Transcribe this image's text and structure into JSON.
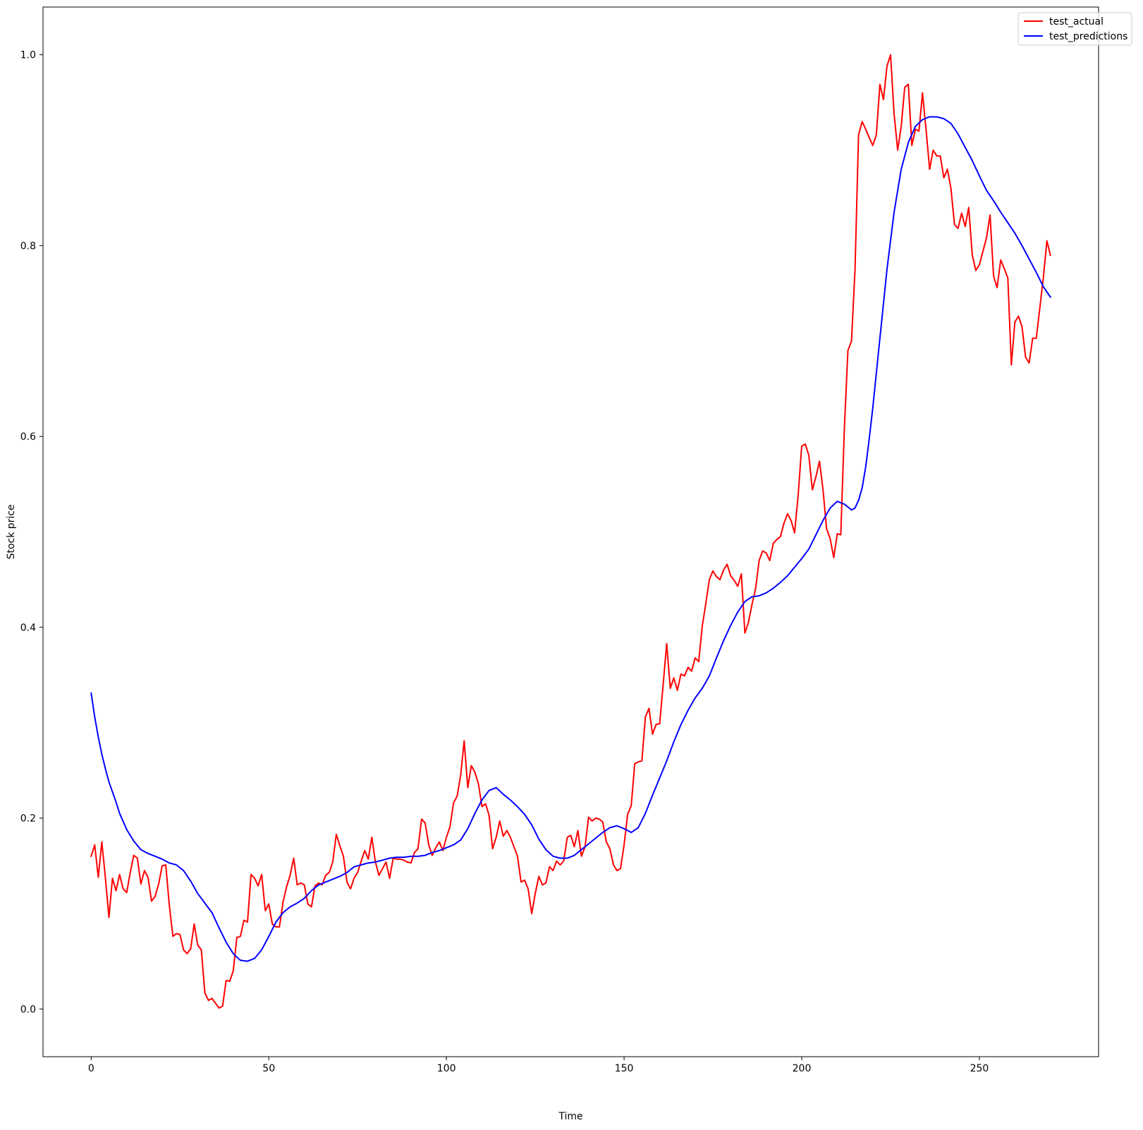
{
  "chart_data": {
    "type": "line",
    "title": "",
    "xlabel": "Time",
    "ylabel": "Stock price",
    "xlim": [
      -13.55,
      283.55
    ],
    "ylim": [
      -0.05,
      1.05
    ],
    "xticks": [
      0,
      50,
      100,
      150,
      200,
      250
    ],
    "xtick_labels": [
      "0",
      "50",
      "100",
      "150",
      "200",
      "250"
    ],
    "yticks": [
      0.0,
      0.2,
      0.4,
      0.6,
      0.8,
      1.0
    ],
    "ytick_labels": [
      "0.0",
      "0.2",
      "0.4",
      "0.6",
      "0.8",
      "1.0"
    ],
    "grid": false,
    "legend_position": "top-right",
    "series": [
      {
        "name": "test_actual",
        "color": "#ff0000",
        "x": [
          0,
          1,
          2,
          3,
          4,
          5,
          6,
          7,
          8,
          9,
          10,
          11,
          12,
          13,
          14,
          15,
          16,
          17,
          18,
          19,
          20,
          21,
          22,
          23,
          24,
          25,
          26,
          27,
          28,
          29,
          30,
          31,
          32,
          33,
          34,
          35,
          36,
          37,
          38,
          39,
          40,
          41,
          42,
          43,
          44,
          45,
          46,
          47,
          48,
          49,
          50,
          51,
          52,
          53,
          54,
          55,
          56,
          57,
          58,
          59,
          60,
          61,
          62,
          63,
          64,
          65,
          66,
          67,
          68,
          69,
          70,
          71,
          72,
          73,
          74,
          75,
          76,
          77,
          78,
          79,
          80,
          81,
          82,
          83,
          84,
          85,
          86,
          87,
          88,
          89,
          90,
          91,
          92,
          93,
          94,
          95,
          96,
          97,
          98,
          99,
          100,
          101,
          102,
          103,
          104,
          105,
          106,
          107,
          108,
          109,
          110,
          111,
          112,
          113,
          114,
          115,
          116,
          117,
          118,
          119,
          120,
          121,
          122,
          123,
          124,
          125,
          126,
          127,
          128,
          129,
          130,
          131,
          132,
          133,
          134,
          135,
          136,
          137,
          138,
          139,
          140,
          141,
          142,
          143,
          144,
          145,
          146,
          147,
          148,
          149,
          150,
          151,
          152,
          153,
          154,
          155,
          156,
          157,
          158,
          159,
          160,
          161,
          162,
          163,
          164,
          165,
          166,
          167,
          168,
          169,
          170,
          171,
          172,
          173,
          174,
          175,
          176,
          177,
          178,
          179,
          180,
          181,
          182,
          183,
          184,
          185,
          186,
          187,
          188,
          189,
          190,
          191,
          192,
          193,
          194,
          195,
          196,
          197,
          198,
          199,
          200,
          201,
          202,
          203,
          204,
          205,
          206,
          207,
          208,
          209,
          210,
          211,
          212,
          213,
          214,
          215,
          216,
          217,
          218,
          219,
          220,
          221,
          222,
          223,
          224,
          225,
          226,
          227,
          228,
          229,
          230,
          231,
          232,
          233,
          234,
          235,
          236,
          237,
          238,
          239,
          240,
          241,
          242,
          243,
          244,
          245,
          246,
          247,
          248,
          249,
          250,
          251,
          252,
          253,
          254,
          255,
          256,
          257,
          258,
          259,
          260,
          261,
          262,
          263,
          264,
          265,
          266,
          267,
          268,
          269,
          270
        ],
        "y": [
          0.16,
          0.172,
          0.138,
          0.175,
          0.138,
          0.096,
          0.137,
          0.124,
          0.141,
          0.126,
          0.122,
          0.143,
          0.161,
          0.158,
          0.131,
          0.145,
          0.138,
          0.113,
          0.118,
          0.131,
          0.15,
          0.151,
          0.109,
          0.076,
          0.079,
          0.078,
          0.062,
          0.058,
          0.063,
          0.089,
          0.067,
          0.062,
          0.017,
          0.009,
          0.011,
          0.006,
          0.001,
          0.003,
          0.03,
          0.029,
          0.04,
          0.075,
          0.076,
          0.093,
          0.091,
          0.141,
          0.137,
          0.129,
          0.141,
          0.103,
          0.11,
          0.089,
          0.086,
          0.086,
          0.112,
          0.128,
          0.14,
          0.158,
          0.13,
          0.132,
          0.13,
          0.11,
          0.107,
          0.129,
          0.132,
          0.13,
          0.14,
          0.143,
          0.154,
          0.183,
          0.171,
          0.16,
          0.133,
          0.126,
          0.137,
          0.143,
          0.155,
          0.166,
          0.157,
          0.18,
          0.154,
          0.14,
          0.147,
          0.154,
          0.137,
          0.158,
          0.157,
          0.157,
          0.156,
          0.154,
          0.153,
          0.164,
          0.168,
          0.199,
          0.195,
          0.172,
          0.161,
          0.169,
          0.175,
          0.166,
          0.18,
          0.191,
          0.216,
          0.223,
          0.245,
          0.281,
          0.232,
          0.255,
          0.248,
          0.236,
          0.212,
          0.215,
          0.203,
          0.168,
          0.18,
          0.197,
          0.181,
          0.187,
          0.18,
          0.17,
          0.16,
          0.133,
          0.135,
          0.126,
          0.1,
          0.121,
          0.139,
          0.13,
          0.132,
          0.149,
          0.145,
          0.155,
          0.151,
          0.155,
          0.18,
          0.182,
          0.17,
          0.187,
          0.16,
          0.17,
          0.201,
          0.197,
          0.2,
          0.199,
          0.196,
          0.175,
          0.168,
          0.151,
          0.145,
          0.147,
          0.172,
          0.204,
          0.213,
          0.257,
          0.259,
          0.26,
          0.306,
          0.315,
          0.288,
          0.298,
          0.299,
          0.34,
          0.383,
          0.336,
          0.347,
          0.334,
          0.351,
          0.349,
          0.358,
          0.354,
          0.368,
          0.364,
          0.401,
          0.425,
          0.45,
          0.459,
          0.453,
          0.45,
          0.46,
          0.466,
          0.454,
          0.449,
          0.443,
          0.456,
          0.394,
          0.405,
          0.424,
          0.44,
          0.47,
          0.48,
          0.478,
          0.47,
          0.488,
          0.492,
          0.495,
          0.509,
          0.519,
          0.512,
          0.499,
          0.539,
          0.59,
          0.592,
          0.58,
          0.544,
          0.558,
          0.574,
          0.544,
          0.503,
          0.493,
          0.473,
          0.498,
          0.497,
          0.609,
          0.69,
          0.7,
          0.775,
          0.916,
          0.93,
          0.922,
          0.913,
          0.905,
          0.916,
          0.969,
          0.953,
          0.988,
          1.0,
          0.938,
          0.9,
          0.925,
          0.966,
          0.969,
          0.905,
          0.922,
          0.92,
          0.96,
          0.921,
          0.88,
          0.9,
          0.894,
          0.894,
          0.871,
          0.88,
          0.86,
          0.822,
          0.818,
          0.834,
          0.82,
          0.84,
          0.79,
          0.774,
          0.78,
          0.794,
          0.808,
          0.832,
          0.768,
          0.756,
          0.785,
          0.776,
          0.766,
          0.675,
          0.72,
          0.726,
          0.715,
          0.683,
          0.677,
          0.703,
          0.703,
          0.734,
          0.766,
          0.805,
          0.79
        ]
      },
      {
        "name": "test_predictions",
        "color": "#0000ff",
        "x": [
          0,
          1,
          2,
          3,
          4,
          5,
          7,
          8,
          10,
          12,
          14,
          16,
          18,
          20,
          22,
          24,
          26,
          28,
          30,
          32,
          34,
          36,
          38,
          40,
          42,
          44,
          46,
          48,
          50,
          52,
          54,
          56,
          58,
          60,
          62,
          64,
          66,
          68,
          70,
          72,
          74,
          76,
          78,
          80,
          82,
          84,
          86,
          88,
          90,
          92,
          94,
          96,
          98,
          100,
          102,
          104,
          106,
          108,
          110,
          112,
          114,
          116,
          118,
          120,
          122,
          124,
          126,
          128,
          130,
          132,
          134,
          136,
          138,
          140,
          142,
          144,
          146,
          148,
          150,
          152,
          154,
          156,
          158,
          160,
          162,
          164,
          166,
          168,
          170,
          172,
          174,
          176,
          178,
          180,
          182,
          184,
          186,
          188,
          190,
          192,
          194,
          196,
          198,
          200,
          202,
          204,
          206,
          208,
          210,
          212,
          214,
          215,
          216,
          217,
          218,
          219,
          220,
          222,
          224,
          226,
          228,
          230,
          232,
          234,
          236,
          238,
          240,
          242,
          244,
          246,
          248,
          250,
          252,
          254,
          256,
          258,
          260,
          262,
          264,
          266,
          268,
          270
        ],
        "y": [
          0.331,
          0.306,
          0.285,
          0.267,
          0.252,
          0.238,
          0.217,
          0.205,
          0.188,
          0.176,
          0.167,
          0.163,
          0.16,
          0.157,
          0.153,
          0.151,
          0.145,
          0.134,
          0.121,
          0.111,
          0.101,
          0.085,
          0.07,
          0.058,
          0.051,
          0.05,
          0.053,
          0.062,
          0.076,
          0.091,
          0.101,
          0.107,
          0.111,
          0.116,
          0.124,
          0.13,
          0.133,
          0.136,
          0.139,
          0.143,
          0.149,
          0.151,
          0.153,
          0.154,
          0.156,
          0.158,
          0.159,
          0.159,
          0.16,
          0.16,
          0.161,
          0.164,
          0.166,
          0.169,
          0.172,
          0.177,
          0.189,
          0.205,
          0.219,
          0.229,
          0.232,
          0.225,
          0.219,
          0.212,
          0.204,
          0.193,
          0.178,
          0.167,
          0.16,
          0.158,
          0.158,
          0.161,
          0.167,
          0.173,
          0.179,
          0.185,
          0.19,
          0.192,
          0.189,
          0.185,
          0.19,
          0.205,
          0.224,
          0.242,
          0.26,
          0.28,
          0.298,
          0.313,
          0.326,
          0.336,
          0.349,
          0.368,
          0.386,
          0.402,
          0.416,
          0.427,
          0.432,
          0.433,
          0.436,
          0.441,
          0.447,
          0.454,
          0.463,
          0.472,
          0.482,
          0.497,
          0.512,
          0.525,
          0.532,
          0.529,
          0.523,
          0.525,
          0.533,
          0.546,
          0.568,
          0.598,
          0.63,
          0.703,
          0.775,
          0.835,
          0.88,
          0.908,
          0.925,
          0.932,
          0.935,
          0.935,
          0.933,
          0.928,
          0.917,
          0.903,
          0.889,
          0.873,
          0.858,
          0.847,
          0.835,
          0.824,
          0.813,
          0.8,
          0.786,
          0.772,
          0.757,
          0.746
        ]
      }
    ]
  }
}
